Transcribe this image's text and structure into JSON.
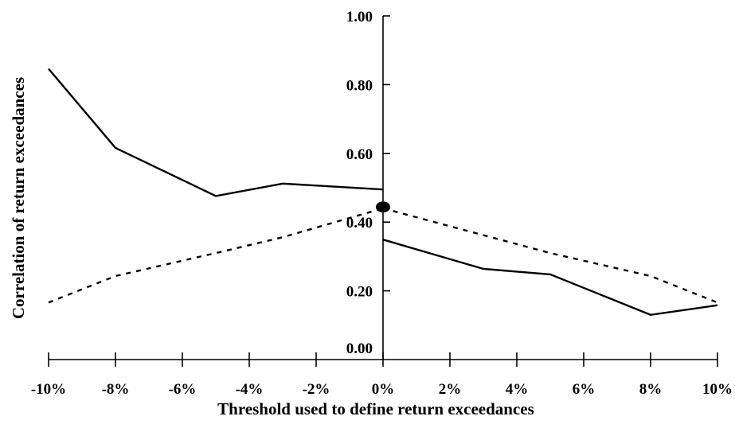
{
  "chart_data": {
    "type": "line",
    "title": "",
    "xlabel": "Threshold used to define return exceedances",
    "ylabel": "Correlation of return exceedances",
    "xlim": [
      -10,
      10
    ],
    "ylim": [
      0,
      1
    ],
    "x_ticks": [
      -10,
      -8,
      -6,
      -4,
      -2,
      0,
      2,
      4,
      6,
      8,
      10
    ],
    "x_tick_labels": [
      "-10%",
      "-8%",
      "-6%",
      "-4%",
      "-2%",
      "0%",
      "2%",
      "4%",
      "6%",
      "8%",
      "10%"
    ],
    "y_ticks": [
      0,
      0.2,
      0.4,
      0.6,
      0.8,
      1.0
    ],
    "y_tick_labels": [
      "0.00",
      "0.20",
      "0.40",
      "0.60",
      "0.80",
      "1.00"
    ],
    "grid": false,
    "legend": "none",
    "series": [
      {
        "style": "solid",
        "color": "#000000",
        "segments": [
          {
            "x": [
              -10,
              -8,
              -5,
              -3,
              0
            ],
            "y": [
              0.846,
              0.616,
              0.476,
              0.512,
              0.495
            ]
          },
          {
            "x": [
              0,
              3,
              5,
              8,
              10
            ],
            "y": [
              0.349,
              0.264,
              0.248,
              0.13,
              0.158
            ]
          }
        ]
      },
      {
        "style": "dotted",
        "color": "#000000",
        "segments": [
          {
            "x": [
              -10,
              -8,
              -5,
              -3,
              0
            ],
            "y": [
              0.166,
              0.243,
              0.31,
              0.356,
              0.44
            ]
          },
          {
            "x": [
              0,
              3,
              5,
              8,
              10
            ],
            "y": [
              0.44,
              0.362,
              0.31,
              0.243,
              0.166
            ]
          }
        ]
      }
    ],
    "markers": [
      {
        "shape": "filled-ellipse",
        "x": 0,
        "y": 0.444
      }
    ]
  }
}
